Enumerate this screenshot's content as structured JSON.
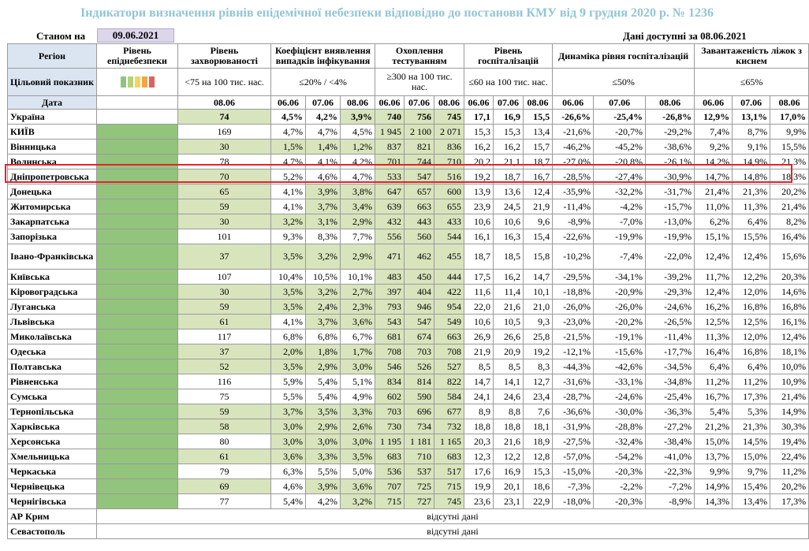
{
  "title": "Індикатори визначення рівнів епідемічної небезпеки відповідно до постанови КМУ від 9 грудня 2020 р. № 1236",
  "as_of_label": "Станом на",
  "as_of_date": "09.06.2021",
  "data_available": "Дані доступні за 08.06.2021",
  "headers": {
    "region": "Регіон",
    "level": "Рівень епіднебезпеки",
    "incidence": "Рівень захворюваності",
    "positivity": "Коефіцієнт виявлення випадків інфікування",
    "testing": "Охоплення тестуванням",
    "hosp": "Рівень госпіталізацій",
    "hosp_dyn": "Динаміка рівня госпіталізацій",
    "oxygen": "Завантаженість ліжок з киснем"
  },
  "targets": {
    "label": "Цільовий показник",
    "incidence": "<75 на 100 тис. нас.",
    "positivity": "≤20% / <4%",
    "testing": "≥300 на 100 тис. нас.",
    "hosp": "≤60 на 100 тис. нас.",
    "hosp_dyn": "≤50%",
    "oxygen": "≤65%"
  },
  "level_colors": [
    "#8fc47f",
    "#b6d37a",
    "#f2d55c",
    "#f4a54a",
    "#e06060"
  ],
  "date_label": "Дата",
  "dates": {
    "incidence": "08.06",
    "three": [
      "06.06",
      "07.06",
      "08.06"
    ]
  },
  "rows": [
    {
      "region": "Україна",
      "inc": "74",
      "pos": [
        "4,5%",
        "4,2%",
        "3,9%"
      ],
      "test": [
        "740",
        "756",
        "745"
      ],
      "hosp": [
        "17,1",
        "16,9",
        "15,5"
      ],
      "dyn": [
        "-26,6%",
        "-25,4%",
        "-26,8%"
      ],
      "oxy": [
        "12,9%",
        "13,1%",
        "17,0%"
      ]
    },
    {
      "region": "КИЇВ",
      "inc": "169",
      "pos": [
        "4,7%",
        "4,7%",
        "4,5%"
      ],
      "test": [
        "1 945",
        "2 100",
        "2 071"
      ],
      "hosp": [
        "15,3",
        "15,3",
        "13,4"
      ],
      "dyn": [
        "-21,6%",
        "-20,7%",
        "-29,2%"
      ],
      "oxy": [
        "7,4%",
        "8,7%",
        "9,9%"
      ]
    },
    {
      "region": "Вінницька",
      "inc": "30",
      "pos": [
        "1,5%",
        "1,4%",
        "1,2%"
      ],
      "test": [
        "837",
        "821",
        "836"
      ],
      "hosp": [
        "16,2",
        "16,2",
        "15,7"
      ],
      "dyn": [
        "-46,2%",
        "-45,2%",
        "-38,6%"
      ],
      "oxy": [
        "9,2%",
        "9,1%",
        "15,5%"
      ]
    },
    {
      "region": "Волинська",
      "inc": "78",
      "pos": [
        "4,7%",
        "4,1%",
        "4,2%"
      ],
      "test": [
        "701",
        "744",
        "710"
      ],
      "hosp": [
        "20,2",
        "21,1",
        "18,7"
      ],
      "dyn": [
        "-27,0%",
        "-20,8%",
        "-26,1%"
      ],
      "oxy": [
        "14,2%",
        "14,9%",
        "21,3%"
      ]
    },
    {
      "region": "Дніпропетровська",
      "inc": "70",
      "pos": [
        "5,2%",
        "4,6%",
        "4,7%"
      ],
      "test": [
        "533",
        "547",
        "516"
      ],
      "hosp": [
        "19,2",
        "18,7",
        "16,7"
      ],
      "dyn": [
        "-28,5%",
        "-27,4%",
        "-30,9%"
      ],
      "oxy": [
        "14,7%",
        "14,8%",
        "18,3%"
      ]
    },
    {
      "region": "Донецька",
      "inc": "65",
      "pos": [
        "4,1%",
        "3,9%",
        "3,8%"
      ],
      "test": [
        "647",
        "657",
        "600"
      ],
      "hosp": [
        "13,9",
        "13,6",
        "12,4"
      ],
      "dyn": [
        "-35,9%",
        "-32,2%",
        "-31,7%"
      ],
      "oxy": [
        "21,4%",
        "21,3%",
        "20,2%"
      ]
    },
    {
      "region": "Житомирська",
      "inc": "59",
      "pos": [
        "4,1%",
        "3,7%",
        "3,4%"
      ],
      "test": [
        "639",
        "663",
        "655"
      ],
      "hosp": [
        "23,9",
        "24,5",
        "21,9"
      ],
      "dyn": [
        "-11,4%",
        "-4,2%",
        "-15,7%"
      ],
      "oxy": [
        "11,0%",
        "11,3%",
        "21,4%"
      ]
    },
    {
      "region": "Закарпатська",
      "inc": "30",
      "pos": [
        "3,2%",
        "3,1%",
        "2,9%"
      ],
      "test": [
        "432",
        "443",
        "433"
      ],
      "hosp": [
        "10,6",
        "10,6",
        "9,6"
      ],
      "dyn": [
        "-8,9%",
        "-7,0%",
        "-13,0%"
      ],
      "oxy": [
        "6,2%",
        "6,4%",
        "8,2%"
      ]
    },
    {
      "region": "Запорізька",
      "inc": "101",
      "pos": [
        "9,3%",
        "8,3%",
        "7,7%"
      ],
      "test": [
        "556",
        "560",
        "544"
      ],
      "hosp": [
        "16,1",
        "16,3",
        "15,4"
      ],
      "dyn": [
        "-22,6%",
        "-19,9%",
        "-19,9%"
      ],
      "oxy": [
        "15,1%",
        "15,5%",
        "16,4%"
      ]
    },
    {
      "region": "Івано-Франківська",
      "inc": "37",
      "pos": [
        "3,5%",
        "3,2%",
        "2,9%"
      ],
      "test": [
        "471",
        "462",
        "455"
      ],
      "hosp": [
        "18,7",
        "18,5",
        "15,8"
      ],
      "dyn": [
        "-10,2%",
        "-7,4%",
        "-22,0%"
      ],
      "oxy": [
        "12,4%",
        "12,4%",
        "15,6%"
      ]
    },
    {
      "region": "Київська",
      "inc": "107",
      "pos": [
        "10,4%",
        "10,5%",
        "10,1%"
      ],
      "test": [
        "483",
        "450",
        "444"
      ],
      "hosp": [
        "17,5",
        "16,2",
        "14,7"
      ],
      "dyn": [
        "-29,5%",
        "-34,1%",
        "-39,2%"
      ],
      "oxy": [
        "11,7%",
        "12,2%",
        "20,3%"
      ]
    },
    {
      "region": "Кіровоградська",
      "inc": "30",
      "pos": [
        "3,5%",
        "3,2%",
        "2,7%"
      ],
      "test": [
        "397",
        "404",
        "422"
      ],
      "hosp": [
        "11,6",
        "11,4",
        "10,1"
      ],
      "dyn": [
        "-18,8%",
        "-20,9%",
        "-29,3%"
      ],
      "oxy": [
        "12,4%",
        "12,0%",
        "14,6%"
      ]
    },
    {
      "region": "Луганська",
      "inc": "59",
      "pos": [
        "3,5%",
        "2,4%",
        "2,3%"
      ],
      "test": [
        "793",
        "946",
        "954"
      ],
      "hosp": [
        "22,0",
        "21,6",
        "21,0"
      ],
      "dyn": [
        "-26,0%",
        "-26,0%",
        "-24,6%"
      ],
      "oxy": [
        "16,2%",
        "16,8%",
        "16,8%"
      ]
    },
    {
      "region": "Львівська",
      "inc": "61",
      "pos": [
        "4,1%",
        "3,7%",
        "3,6%"
      ],
      "test": [
        "543",
        "547",
        "549"
      ],
      "hosp": [
        "10,6",
        "10,5",
        "9,3"
      ],
      "dyn": [
        "-23,0%",
        "-20,2%",
        "-26,5%"
      ],
      "oxy": [
        "12,5%",
        "12,5%",
        "16,1%"
      ]
    },
    {
      "region": "Миколаївська",
      "inc": "117",
      "pos": [
        "6,8%",
        "6,8%",
        "6,7%"
      ],
      "test": [
        "681",
        "674",
        "663"
      ],
      "hosp": [
        "26,9",
        "26,6",
        "25,8"
      ],
      "dyn": [
        "-21,5%",
        "-19,1%",
        "-11,4%"
      ],
      "oxy": [
        "11,3%",
        "12,0%",
        "12,4%"
      ]
    },
    {
      "region": "Одеська",
      "inc": "37",
      "pos": [
        "2,0%",
        "1,8%",
        "1,7%"
      ],
      "test": [
        "708",
        "703",
        "708"
      ],
      "hosp": [
        "21,9",
        "20,9",
        "19,2"
      ],
      "dyn": [
        "-12,1%",
        "-15,6%",
        "-17,7%"
      ],
      "oxy": [
        "16,4%",
        "16,8%",
        "18,1%"
      ]
    },
    {
      "region": "Полтавська",
      "inc": "52",
      "pos": [
        "3,5%",
        "2,9%",
        "3,0%"
      ],
      "test": [
        "546",
        "526",
        "527"
      ],
      "hosp": [
        "8,5",
        "8,5",
        "8,3"
      ],
      "dyn": [
        "-44,3%",
        "-42,6%",
        "-34,5%"
      ],
      "oxy": [
        "6,4%",
        "6,4%",
        "10,0%"
      ]
    },
    {
      "region": "Рівненська",
      "inc": "116",
      "pos": [
        "5,9%",
        "5,4%",
        "5,1%"
      ],
      "test": [
        "834",
        "814",
        "822"
      ],
      "hosp": [
        "14,7",
        "14,1",
        "12,7"
      ],
      "dyn": [
        "-31,6%",
        "-33,1%",
        "-34,8%"
      ],
      "oxy": [
        "11,2%",
        "11,2%",
        "10,9%"
      ]
    },
    {
      "region": "Сумська",
      "inc": "75",
      "pos": [
        "5,5%",
        "5,4%",
        "4,9%"
      ],
      "test": [
        "602",
        "590",
        "584"
      ],
      "hosp": [
        "24,1",
        "24,6",
        "23,4"
      ],
      "dyn": [
        "-28,7%",
        "-24,6%",
        "-25,4%"
      ],
      "oxy": [
        "16,7%",
        "17,3%",
        "21,4%"
      ]
    },
    {
      "region": "Тернопільська",
      "inc": "59",
      "pos": [
        "3,7%",
        "3,5%",
        "3,3%"
      ],
      "test": [
        "703",
        "696",
        "677"
      ],
      "hosp": [
        "8,9",
        "8,8",
        "7,6"
      ],
      "dyn": [
        "-36,6%",
        "-30,0%",
        "-36,3%"
      ],
      "oxy": [
        "5,4%",
        "5,3%",
        "14,9%"
      ]
    },
    {
      "region": "Харківська",
      "inc": "58",
      "pos": [
        "3,0%",
        "2,9%",
        "2,6%"
      ],
      "test": [
        "730",
        "734",
        "732"
      ],
      "hosp": [
        "18,8",
        "18,8",
        "18,1"
      ],
      "dyn": [
        "-31,9%",
        "-28,8%",
        "-27,2%"
      ],
      "oxy": [
        "21,2%",
        "21,3%",
        "30,3%"
      ]
    },
    {
      "region": "Херсонська",
      "inc": "80",
      "pos": [
        "3,0%",
        "3,0%",
        "3,0%"
      ],
      "test": [
        "1 195",
        "1 181",
        "1 165"
      ],
      "hosp": [
        "20,3",
        "21,6",
        "18,9"
      ],
      "dyn": [
        "-27,5%",
        "-32,4%",
        "-38,4%"
      ],
      "oxy": [
        "15,0%",
        "14,5%",
        "19,4%"
      ]
    },
    {
      "region": "Хмельницька",
      "inc": "61",
      "pos": [
        "3,6%",
        "3,3%",
        "3,5%"
      ],
      "test": [
        "683",
        "710",
        "683"
      ],
      "hosp": [
        "12,3",
        "12,2",
        "12,8"
      ],
      "dyn": [
        "-57,0%",
        "-54,2%",
        "-41,0%"
      ],
      "oxy": [
        "13,7%",
        "15,0%",
        "22,4%"
      ]
    },
    {
      "region": "Черкаська",
      "inc": "79",
      "pos": [
        "6,3%",
        "5,5%",
        "5,0%"
      ],
      "test": [
        "536",
        "537",
        "517"
      ],
      "hosp": [
        "17,6",
        "16,9",
        "15,3"
      ],
      "dyn": [
        "-15,0%",
        "-20,3%",
        "-22,3%"
      ],
      "oxy": [
        "9,9%",
        "9,7%",
        "11,2%"
      ]
    },
    {
      "region": "Чернівецька",
      "inc": "69",
      "pos": [
        "4,6%",
        "3,9%",
        "3,6%"
      ],
      "test": [
        "707",
        "725",
        "715"
      ],
      "hosp": [
        "19,9",
        "20,1",
        "18,6"
      ],
      "dyn": [
        "-7,3%",
        "-2,2%",
        "-7,2%"
      ],
      "oxy": [
        "14,9%",
        "15,4%",
        "20,2%"
      ]
    },
    {
      "region": "Чернігівська",
      "inc": "77",
      "pos": [
        "5,4%",
        "4,2%",
        "3,2%"
      ],
      "test": [
        "715",
        "727",
        "745"
      ],
      "hosp": [
        "23,6",
        "23,1",
        "22,9"
      ],
      "dyn": [
        "-18,0%",
        "-20,3%",
        "-8,9%"
      ],
      "oxy": [
        "14,3%",
        "13,4%",
        "17,3%"
      ]
    }
  ],
  "missing_rows": [
    {
      "region": "АР Крим",
      "note": "відсутні дані"
    },
    {
      "region": "Севастополь",
      "note": "відсутні дані"
    }
  ]
}
